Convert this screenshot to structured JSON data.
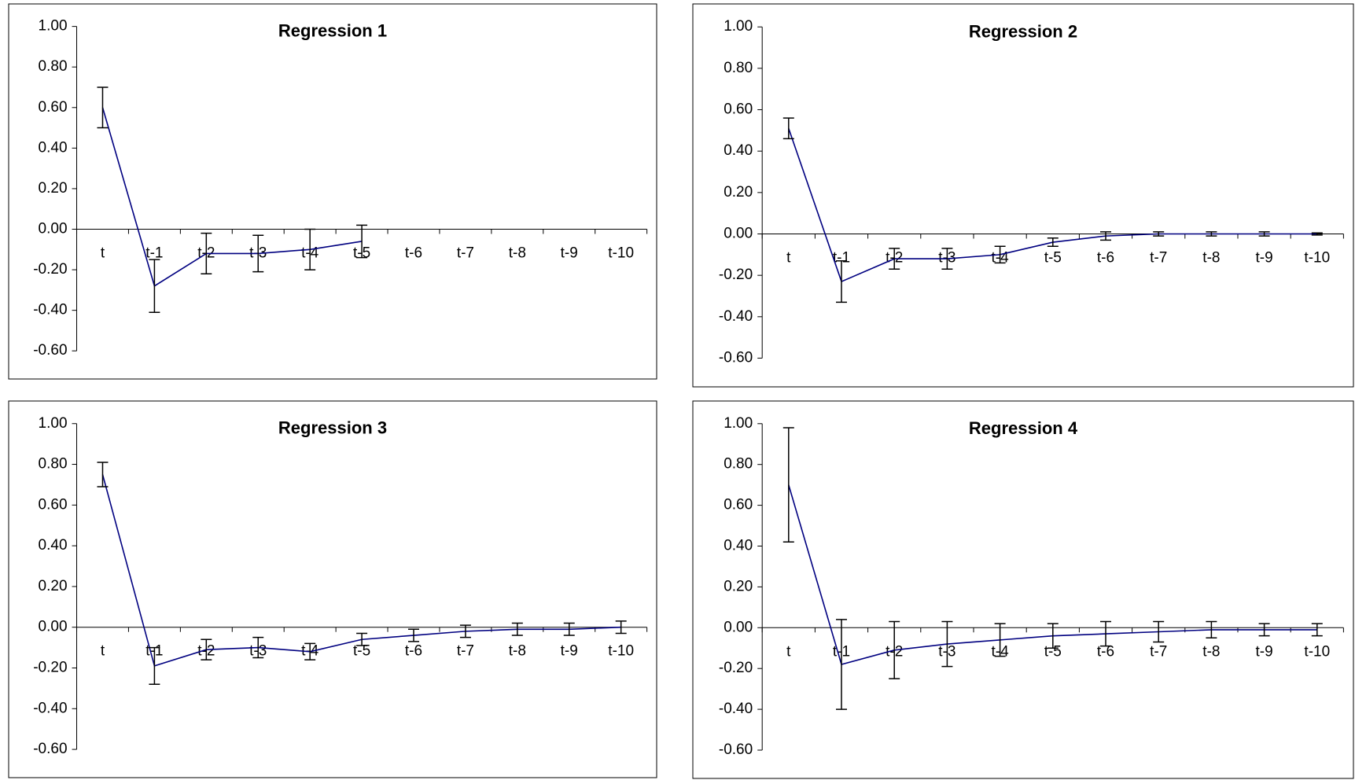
{
  "chart_data": [
    {
      "type": "line",
      "title": "Regression 1",
      "categories": [
        "t",
        "t-1",
        "t-2",
        "t-3",
        "t-4",
        "t-5",
        "t-6",
        "t-7",
        "t-8",
        "t-9",
        "t-10"
      ],
      "series": [
        {
          "color": "#000080",
          "values": [
            0.6,
            -0.28,
            -0.12,
            -0.12,
            -0.1,
            -0.06,
            null,
            null,
            null,
            null,
            null
          ],
          "errors": [
            0.1,
            0.13,
            0.1,
            0.09,
            0.1,
            0.08,
            null,
            null,
            null,
            null,
            null
          ]
        }
      ],
      "ylim": [
        -0.6,
        1.0
      ],
      "yticks": [
        {
          "value": -0.6,
          "label": "-0.60"
        },
        {
          "value": -0.4,
          "label": "-0.40"
        },
        {
          "value": -0.2,
          "label": "-0.20"
        },
        {
          "value": 0,
          "label": "0.00"
        },
        {
          "value": 0.2,
          "label": "0.20"
        },
        {
          "value": 0.4,
          "label": "0.40"
        },
        {
          "value": 0.6,
          "label": "0.60"
        },
        {
          "value": 0.8,
          "label": "0.80"
        },
        {
          "value": 1,
          "label": "1.00"
        }
      ]
    },
    {
      "type": "line",
      "title": "Regression 2",
      "categories": [
        "t",
        "t-1",
        "t-2",
        "t-3",
        "t-4",
        "t-5",
        "t-6",
        "t-7",
        "t-8",
        "t-9",
        "t-10"
      ],
      "series": [
        {
          "color": "#000080",
          "values": [
            0.51,
            -0.23,
            -0.12,
            -0.12,
            -0.1,
            -0.04,
            -0.01,
            0.0,
            0.0,
            0.0,
            0.0
          ],
          "errors": [
            0.05,
            0.1,
            0.05,
            0.05,
            0.04,
            0.02,
            0.02,
            0.01,
            0.01,
            0.01,
            0.005
          ]
        }
      ],
      "ylim": [
        -0.6,
        1.0
      ],
      "yticks": [
        {
          "value": -0.6,
          "label": "-0.60"
        },
        {
          "value": -0.4,
          "label": "-0.40"
        },
        {
          "value": -0.2,
          "label": "-0.20"
        },
        {
          "value": 0,
          "label": "0.00"
        },
        {
          "value": 0.2,
          "label": "0.20"
        },
        {
          "value": 0.4,
          "label": "0.40"
        },
        {
          "value": 0.6,
          "label": "0.60"
        },
        {
          "value": 0.8,
          "label": "0.80"
        },
        {
          "value": 1,
          "label": "1.00"
        }
      ]
    },
    {
      "type": "line",
      "title": "Regression 3",
      "categories": [
        "t",
        "t-1",
        "t-2",
        "t-3",
        "t-4",
        "t-5",
        "t-6",
        "t-7",
        "t-8",
        "t-9",
        "t-10"
      ],
      "series": [
        {
          "color": "#000080",
          "values": [
            0.75,
            -0.19,
            -0.11,
            -0.1,
            -0.12,
            -0.06,
            -0.04,
            -0.02,
            -0.01,
            -0.01,
            0.0
          ],
          "errors": [
            0.06,
            0.09,
            0.05,
            0.05,
            0.04,
            0.03,
            0.03,
            0.03,
            0.03,
            0.03,
            0.03
          ]
        }
      ],
      "ylim": [
        -0.6,
        1.0
      ],
      "yticks": [
        {
          "value": -0.6,
          "label": "-0.60"
        },
        {
          "value": -0.4,
          "label": "-0.40"
        },
        {
          "value": -0.2,
          "label": "-0.20"
        },
        {
          "value": 0,
          "label": "0.00"
        },
        {
          "value": 0.2,
          "label": "0.20"
        },
        {
          "value": 0.4,
          "label": "0.40"
        },
        {
          "value": 0.6,
          "label": "0.60"
        },
        {
          "value": 0.8,
          "label": "0.80"
        },
        {
          "value": 1,
          "label": "1.00"
        }
      ]
    },
    {
      "type": "line",
      "title": "Regression 4",
      "categories": [
        "t",
        "t-1",
        "t-2",
        "t-3",
        "t-4",
        "t-5",
        "t-6",
        "t-7",
        "t-8",
        "t-9",
        "t-10"
      ],
      "series": [
        {
          "color": "#000080",
          "values": [
            0.7,
            -0.18,
            -0.11,
            -0.08,
            -0.06,
            -0.04,
            -0.03,
            -0.02,
            -0.01,
            -0.01,
            -0.01
          ],
          "errors": [
            0.28,
            0.22,
            0.14,
            0.11,
            0.08,
            0.06,
            0.06,
            0.05,
            0.04,
            0.03,
            0.03
          ]
        }
      ],
      "ylim": [
        -0.6,
        1.0
      ],
      "yticks": [
        {
          "value": -0.6,
          "label": "-0.60"
        },
        {
          "value": -0.4,
          "label": "-0.40"
        },
        {
          "value": -0.2,
          "label": "-0.20"
        },
        {
          "value": 0,
          "label": "0.00"
        },
        {
          "value": 0.2,
          "label": "0.20"
        },
        {
          "value": 0.4,
          "label": "0.40"
        },
        {
          "value": 0.6,
          "label": "0.60"
        },
        {
          "value": 0.8,
          "label": "0.80"
        },
        {
          "value": 1,
          "label": "1.00"
        }
      ]
    }
  ]
}
